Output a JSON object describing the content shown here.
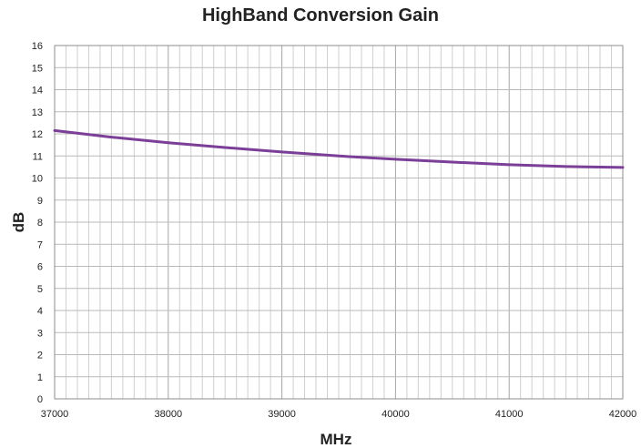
{
  "chart_data": {
    "type": "line",
    "title": "HighBand Conversion Gain",
    "xlabel": "MHz",
    "ylabel": "dB",
    "xlim": [
      37000,
      42000
    ],
    "ylim": [
      0,
      16
    ],
    "x_ticks": [
      37000,
      38000,
      39000,
      40000,
      41000,
      42000
    ],
    "y_ticks": [
      0,
      1,
      2,
      3,
      4,
      5,
      6,
      7,
      8,
      9,
      10,
      11,
      12,
      13,
      14,
      15,
      16
    ],
    "grid": true,
    "legend": "none",
    "series": [
      {
        "color": "#7b3f98",
        "x": [
          37000,
          37500,
          38000,
          38500,
          39000,
          39500,
          40000,
          40500,
          41000,
          41500,
          42000
        ],
        "y": [
          12.15,
          11.85,
          11.6,
          11.38,
          11.18,
          11.0,
          10.85,
          10.72,
          10.6,
          10.52,
          10.48
        ]
      }
    ]
  }
}
